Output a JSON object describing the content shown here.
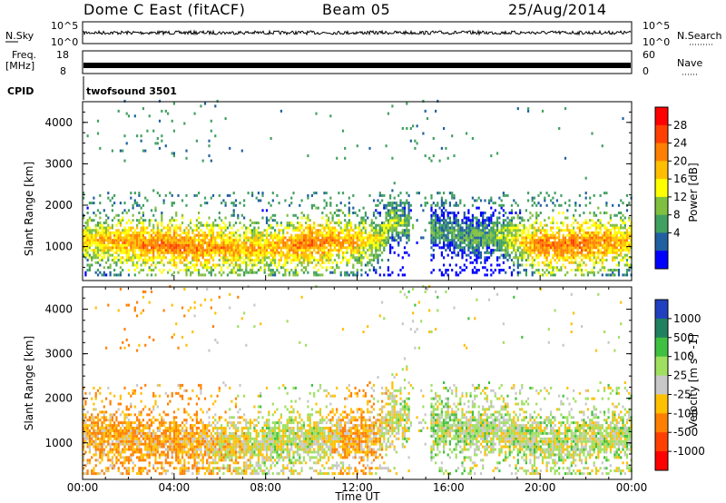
{
  "header": {
    "title": "Dome C East (fitACF)",
    "beam": "Beam 05",
    "date": "25/Aug/2014"
  },
  "strips": {
    "nsky_label": "N.Sky",
    "nsky_ticks": [
      "10^5",
      "10^0"
    ],
    "nsearch_label": "N.Search",
    "nsearch_ticks": [
      "10^5",
      "10^0"
    ],
    "freq_label": "Freq.",
    "freq_unit": "[MHz]",
    "freq_ticks": [
      "18",
      "8"
    ],
    "nave_label": "Nave",
    "nave_ticks": [
      "60",
      "0"
    ],
    "cpid_label": "CPID",
    "cpid_value": "twofsound 3501"
  },
  "x_axis": {
    "label": "Time UT",
    "ticks": [
      "00:00",
      "04:00",
      "08:00",
      "12:00",
      "16:00",
      "20:00",
      "00:00"
    ]
  },
  "panels": {
    "power": {
      "ylabel": "Slant Range [km]",
      "yticks": [
        "4000",
        "3000",
        "2000",
        "1000"
      ]
    },
    "velocity": {
      "ylabel": "Slant Range [km]",
      "yticks": [
        "4000",
        "3000",
        "2000",
        "1000"
      ]
    }
  },
  "colorbars": {
    "power": {
      "label": "Power [dB]",
      "ticks": [
        "28",
        "24",
        "20",
        "16",
        "12",
        "8",
        "4"
      ],
      "colors": [
        "#ff0000",
        "#ff4000",
        "#ff8000",
        "#ffbf00",
        "#ffff00",
        "#80c040",
        "#40a060",
        "#2060a0",
        "#0000ff"
      ]
    },
    "velocity": {
      "label": "Velocity [m s^-1]",
      "ticks": [
        "1000",
        "500",
        "100",
        "25",
        "-25",
        "-100",
        "-500",
        "-1000"
      ],
      "colors": [
        "#2040c0",
        "#208060",
        "#40c040",
        "#a0e060",
        "#c8c8c8",
        "#ffc000",
        "#ff8000",
        "#ff4000",
        "#ff0000"
      ]
    }
  },
  "chart_data": {
    "type": "heatmap",
    "title": "Dome C East (fitACF)",
    "x_label": "Time UT",
    "y_label": "Slant Range [km]",
    "x_range_hours": [
      0,
      24
    ],
    "y_range_km": [
      180,
      4500
    ],
    "power_band_center_km": [
      [
        0,
        1150
      ],
      [
        1,
        1100
      ],
      [
        2,
        1050
      ],
      [
        3,
        1000
      ],
      [
        4,
        1000
      ],
      [
        5,
        950
      ],
      [
        6,
        950
      ],
      [
        7,
        900
      ],
      [
        8,
        950
      ],
      [
        9,
        1000
      ],
      [
        10,
        1050
      ],
      [
        11,
        1100
      ],
      [
        12,
        1100
      ],
      [
        13,
        1150
      ],
      [
        13.5,
        1600
      ],
      [
        15,
        1400
      ],
      [
        16,
        1300
      ],
      [
        17,
        1200
      ],
      [
        18,
        1250
      ],
      [
        19,
        1100
      ],
      [
        20,
        1000
      ],
      [
        21,
        1000
      ],
      [
        22,
        1050
      ],
      [
        23,
        1100
      ],
      [
        24,
        1100
      ]
    ],
    "power_band_peak_dB": [
      [
        0,
        22
      ],
      [
        2,
        26
      ],
      [
        4,
        28
      ],
      [
        6,
        26
      ],
      [
        8,
        24
      ],
      [
        10,
        28
      ],
      [
        12,
        24
      ],
      [
        14,
        16
      ],
      [
        16,
        14
      ],
      [
        18,
        16
      ],
      [
        20,
        28
      ],
      [
        22,
        28
      ],
      [
        24,
        24
      ]
    ],
    "velocity_band_mean_ms": [
      [
        0,
        -100
      ],
      [
        2,
        -100
      ],
      [
        4,
        -100
      ],
      [
        6,
        -50
      ],
      [
        8,
        25
      ],
      [
        10,
        25
      ],
      [
        12,
        -100
      ],
      [
        14,
        25
      ],
      [
        16,
        50
      ],
      [
        18,
        25
      ],
      [
        20,
        25
      ],
      [
        22,
        25
      ],
      [
        24,
        25
      ]
    ]
  }
}
